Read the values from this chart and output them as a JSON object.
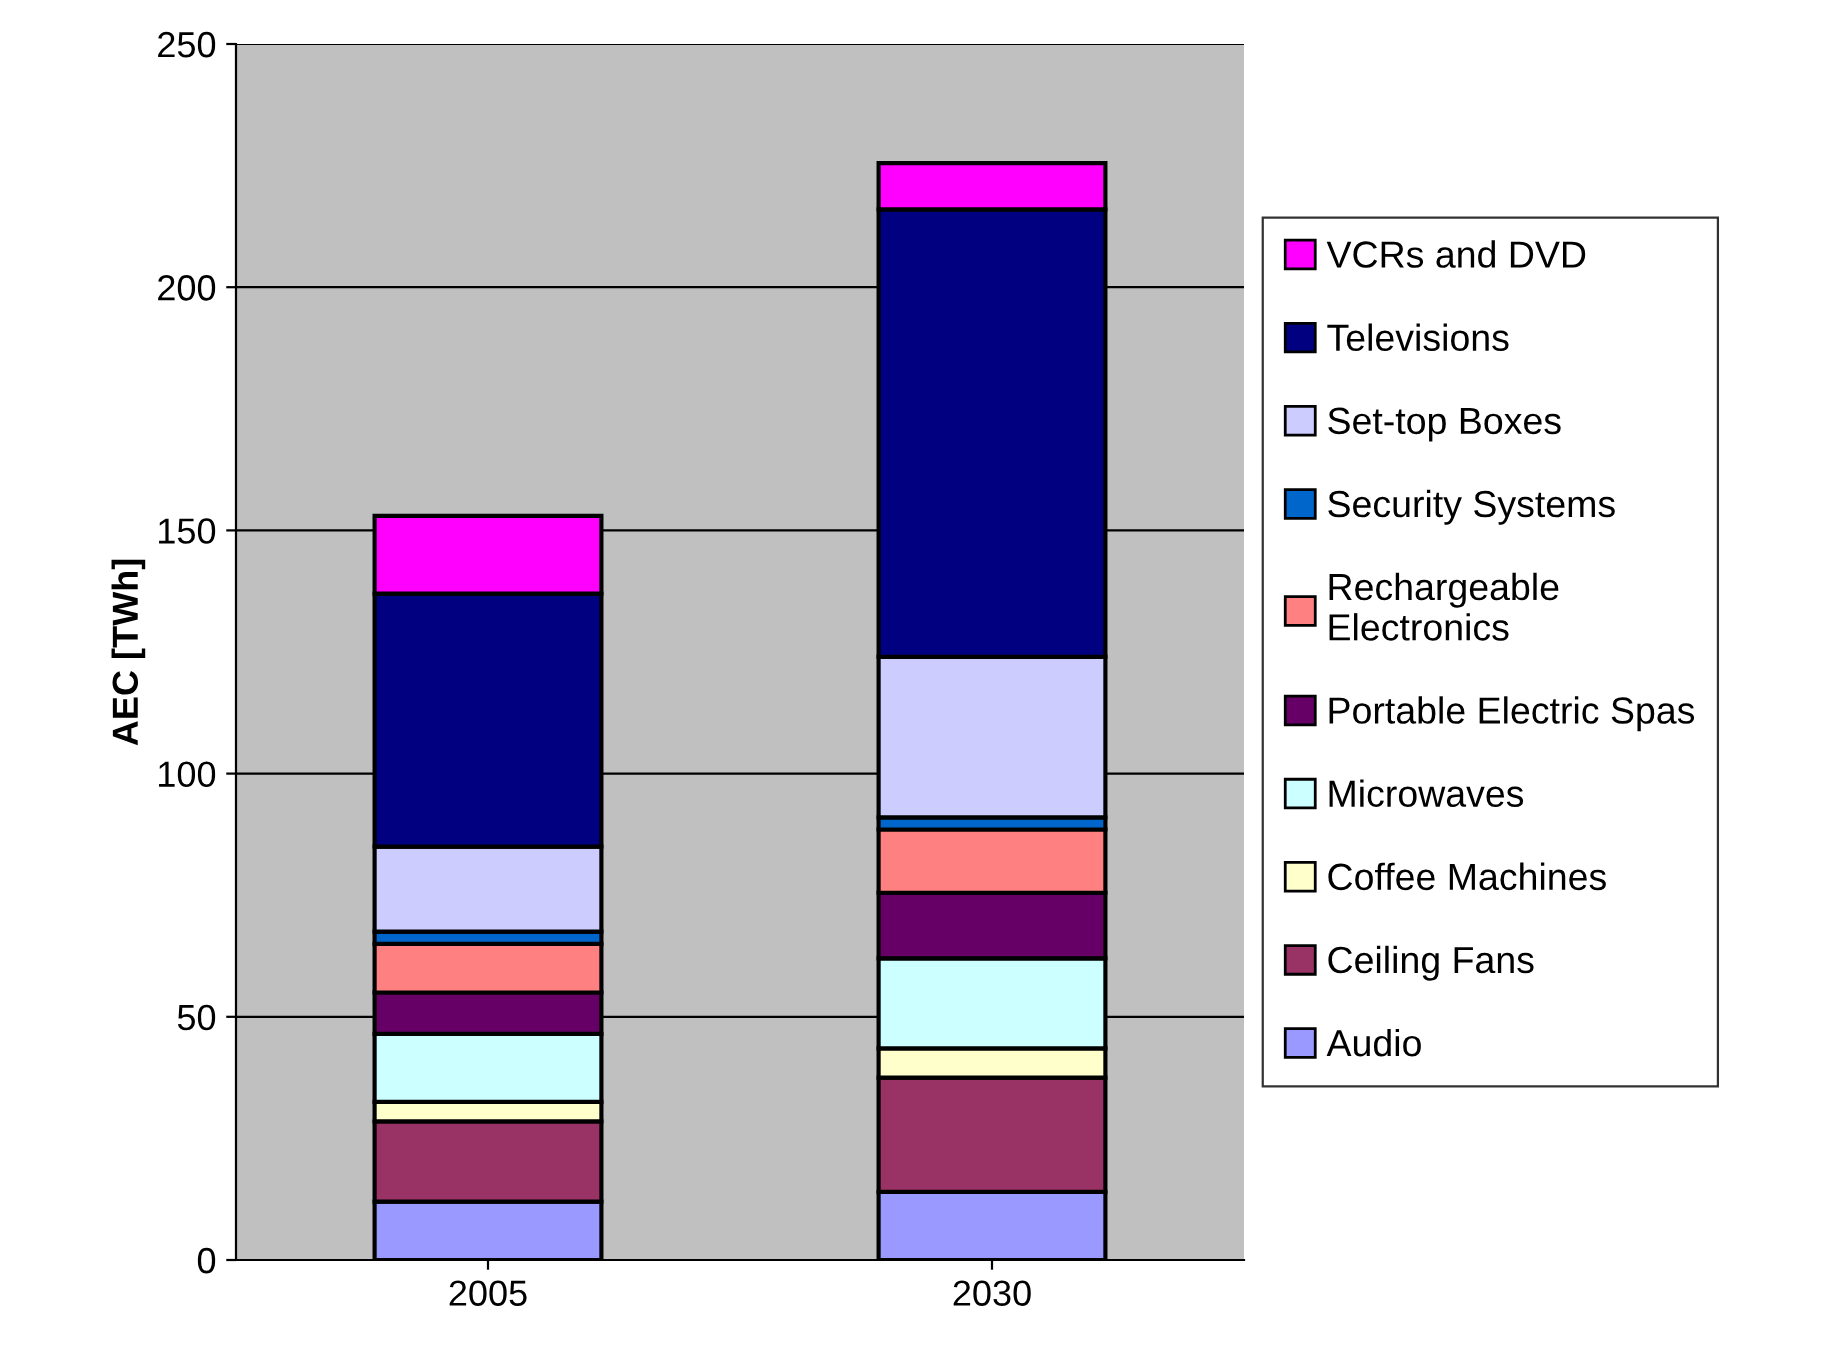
{
  "chart_data": {
    "type": "bar",
    "stacked": true,
    "ylabel": "AEC [TWh]",
    "categories": [
      "2005",
      "2030"
    ],
    "ylim": [
      0,
      250
    ],
    "yticks": [
      0,
      50,
      100,
      150,
      200,
      250
    ],
    "grid": "y",
    "legend": "right",
    "series": [
      {
        "name": "Audio",
        "color": "#9999ff",
        "values": [
          12,
          14
        ]
      },
      {
        "name": "Ceiling Fans",
        "color": "#993366",
        "values": [
          16.5,
          23.5
        ]
      },
      {
        "name": "Coffee Machines",
        "color": "#ffffcc",
        "values": [
          4,
          6
        ]
      },
      {
        "name": "Microwaves",
        "color": "#ccffff",
        "values": [
          14,
          18.5
        ]
      },
      {
        "name": "Portable Electric Spas",
        "color": "#660066",
        "values": [
          8.5,
          13.5
        ]
      },
      {
        "name": "Rechargeable\nElectronics",
        "color": "#ff8080",
        "values": [
          10,
          13
        ]
      },
      {
        "name": "Security Systems",
        "color": "#0066cc",
        "values": [
          2.5,
          2.5
        ]
      },
      {
        "name": "Set-top Boxes",
        "color": "#ccccff",
        "values": [
          17.5,
          33
        ]
      },
      {
        "name": "Televisions",
        "color": "#000080",
        "values": [
          52,
          92
        ]
      },
      {
        "name": "VCRs and DVD",
        "color": "#ff00ff",
        "values": [
          16,
          9.5
        ]
      }
    ]
  }
}
